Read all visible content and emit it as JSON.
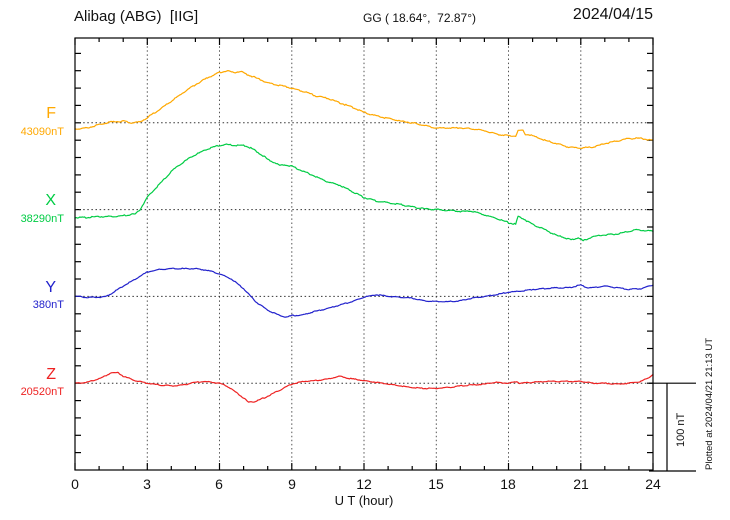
{
  "header": {
    "title": "Alibag (ABG)  [IIG]",
    "coordinates": "GG ( 18.64°,  72.87°)",
    "date": "2024/04/15"
  },
  "x_axis": {
    "tick_labels": [
      "0",
      "3",
      "6",
      "9",
      "12",
      "15",
      "18",
      "21",
      "24"
    ],
    "label": "U T (hour)"
  },
  "scale_bar": {
    "label": "100 nT"
  },
  "side_note": "Plotted at 2024/04/21 21:13 UT",
  "chart_data": {
    "type": "line",
    "title": "Alibag (ABG) magnetogram 2024/04/15",
    "x_unit": "UT hour",
    "x_range": [
      0,
      24
    ],
    "x_gridlines_hours": [
      3,
      6,
      9,
      12,
      15,
      18,
      21
    ],
    "y_scale_note": "scale bar = 100 nT; point values are deviations in nT from each channel baseline",
    "grid": "dotted",
    "series": [
      {
        "name": "F",
        "base_label": "43090nT",
        "baseline_nT": 43090,
        "color": "#FFA800",
        "points": [
          [
            0,
            -7
          ],
          [
            0.5,
            -6
          ],
          [
            1,
            -2
          ],
          [
            1.5,
            1
          ],
          [
            2,
            2
          ],
          [
            2.3,
            0
          ],
          [
            2.7,
            1
          ],
          [
            3,
            6
          ],
          [
            3.5,
            15
          ],
          [
            4,
            25
          ],
          [
            4.5,
            35
          ],
          [
            5,
            44
          ],
          [
            5.5,
            52
          ],
          [
            6,
            58
          ],
          [
            6.3,
            60
          ],
          [
            6.6,
            58
          ],
          [
            6.9,
            59
          ],
          [
            7.2,
            55
          ],
          [
            7.5,
            52
          ],
          [
            8,
            46
          ],
          [
            8.5,
            43
          ],
          [
            9,
            40
          ],
          [
            9.5,
            36
          ],
          [
            10,
            31
          ],
          [
            10.5,
            28
          ],
          [
            11,
            23
          ],
          [
            11.5,
            18
          ],
          [
            12,
            12
          ],
          [
            12.5,
            8
          ],
          [
            13,
            5
          ],
          [
            13.5,
            2
          ],
          [
            14,
            0
          ],
          [
            14.5,
            -3
          ],
          [
            15,
            -6
          ],
          [
            16,
            -6
          ],
          [
            16.5,
            -7
          ],
          [
            17,
            -9
          ],
          [
            17.5,
            -13
          ],
          [
            18,
            -15
          ],
          [
            18.3,
            -15
          ],
          [
            18.4,
            -9
          ],
          [
            18.6,
            -9
          ],
          [
            18.7,
            -13
          ],
          [
            19,
            -15
          ],
          [
            19.5,
            -20
          ],
          [
            20,
            -24
          ],
          [
            20.5,
            -28
          ],
          [
            21,
            -29
          ],
          [
            21.5,
            -28
          ],
          [
            22,
            -24
          ],
          [
            22.5,
            -21
          ],
          [
            23,
            -18
          ],
          [
            23.5,
            -18
          ],
          [
            24,
            -20
          ]
        ]
      },
      {
        "name": "X",
        "base_label": "38290nT",
        "baseline_nT": 38290,
        "color": "#00CC44",
        "points": [
          [
            0,
            -9
          ],
          [
            0.5,
            -9
          ],
          [
            1,
            -8
          ],
          [
            1.5,
            -8
          ],
          [
            2,
            -7
          ],
          [
            2.5,
            -5
          ],
          [
            2.7,
            0
          ],
          [
            3,
            14
          ],
          [
            3.5,
            29
          ],
          [
            4,
            44
          ],
          [
            4.5,
            55
          ],
          [
            5,
            63
          ],
          [
            5.5,
            70
          ],
          [
            6,
            74
          ],
          [
            6.3,
            75
          ],
          [
            6.6,
            74
          ],
          [
            7,
            74
          ],
          [
            7.3,
            71
          ],
          [
            7.6,
            66
          ],
          [
            8,
            58
          ],
          [
            8.3,
            54
          ],
          [
            8.5,
            51
          ],
          [
            8.7,
            52
          ],
          [
            9,
            50
          ],
          [
            9.5,
            44
          ],
          [
            10,
            38
          ],
          [
            10.5,
            32
          ],
          [
            11,
            28
          ],
          [
            11.5,
            21
          ],
          [
            12,
            14
          ],
          [
            12.5,
            10
          ],
          [
            13,
            8
          ],
          [
            13.5,
            6
          ],
          [
            14,
            3
          ],
          [
            14.5,
            1
          ],
          [
            15,
            0
          ],
          [
            15.5,
            -1
          ],
          [
            16,
            -2
          ],
          [
            16.5,
            -2
          ],
          [
            17,
            -6
          ],
          [
            17.5,
            -10
          ],
          [
            18,
            -15
          ],
          [
            18.3,
            -17
          ],
          [
            18.4,
            -8
          ],
          [
            18.6,
            -10
          ],
          [
            18.8,
            -14
          ],
          [
            19,
            -17
          ],
          [
            19.5,
            -23
          ],
          [
            20,
            -30
          ],
          [
            20.3,
            -32
          ],
          [
            20.6,
            -35
          ],
          [
            20.9,
            -32
          ],
          [
            21.1,
            -36
          ],
          [
            21.5,
            -31
          ],
          [
            22,
            -29
          ],
          [
            22.5,
            -28
          ],
          [
            23,
            -25
          ],
          [
            23.3,
            -23
          ],
          [
            23.6,
            -24
          ],
          [
            24,
            -25
          ]
        ]
      },
      {
        "name": "Y",
        "base_label": "380nT",
        "baseline_nT": 380,
        "color": "#2222CC",
        "points": [
          [
            0,
            0
          ],
          [
            0.5,
            -1
          ],
          [
            1,
            -1
          ],
          [
            1.3,
            0
          ],
          [
            1.5,
            3
          ],
          [
            2,
            12
          ],
          [
            2.5,
            20
          ],
          [
            3,
            28
          ],
          [
            3.5,
            31
          ],
          [
            4,
            32
          ],
          [
            4.5,
            32
          ],
          [
            5,
            32
          ],
          [
            5.5,
            30
          ],
          [
            6,
            26
          ],
          [
            6.5,
            20
          ],
          [
            7,
            9
          ],
          [
            7.5,
            -6
          ],
          [
            8,
            -16
          ],
          [
            8.5,
            -22
          ],
          [
            8.8,
            -24
          ],
          [
            9,
            -22
          ],
          [
            9.3,
            -22
          ],
          [
            9.5,
            -21
          ],
          [
            10,
            -17
          ],
          [
            10.5,
            -14
          ],
          [
            11,
            -10
          ],
          [
            11.5,
            -6
          ],
          [
            12,
            -1
          ],
          [
            12.5,
            2
          ],
          [
            13,
            0
          ],
          [
            13.5,
            -1
          ],
          [
            14,
            -2
          ],
          [
            14.5,
            -5
          ],
          [
            15,
            -6
          ],
          [
            15.5,
            -6
          ],
          [
            16,
            -5
          ],
          [
            16.5,
            -2
          ],
          [
            17,
            0
          ],
          [
            17.5,
            2
          ],
          [
            18,
            5
          ],
          [
            18.5,
            6
          ],
          [
            19,
            8
          ],
          [
            19.5,
            9
          ],
          [
            20,
            10
          ],
          [
            20.5,
            10
          ],
          [
            21,
            13
          ],
          [
            21.3,
            10
          ],
          [
            21.5,
            10
          ],
          [
            22,
            12
          ],
          [
            22.5,
            10
          ],
          [
            23,
            8
          ],
          [
            23.5,
            9
          ],
          [
            24,
            13
          ]
        ]
      },
      {
        "name": "Z",
        "base_label": "20520nT",
        "baseline_nT": 20520,
        "color": "#EE2222",
        "points": [
          [
            0,
            0
          ],
          [
            0.5,
            1
          ],
          [
            1,
            5
          ],
          [
            1.3,
            9
          ],
          [
            1.5,
            12
          ],
          [
            1.8,
            12
          ],
          [
            2,
            8
          ],
          [
            2.5,
            3
          ],
          [
            3,
            0
          ],
          [
            3.5,
            -2
          ],
          [
            4,
            -3
          ],
          [
            4.5,
            -2
          ],
          [
            5,
            1
          ],
          [
            5.3,
            2
          ],
          [
            5.7,
            1
          ],
          [
            6,
            0
          ],
          [
            6.3,
            -3
          ],
          [
            6.6,
            -9
          ],
          [
            7,
            -17
          ],
          [
            7.2,
            -22
          ],
          [
            7.5,
            -21
          ],
          [
            8,
            -15
          ],
          [
            8.5,
            -8
          ],
          [
            9,
            -1
          ],
          [
            9.5,
            2
          ],
          [
            10,
            3
          ],
          [
            10.5,
            5
          ],
          [
            10.8,
            7
          ],
          [
            11,
            8
          ],
          [
            11.3,
            6
          ],
          [
            11.5,
            5
          ],
          [
            12,
            3
          ],
          [
            12.5,
            1
          ],
          [
            13,
            -1
          ],
          [
            13.5,
            -3
          ],
          [
            14,
            -5
          ],
          [
            14.5,
            -6
          ],
          [
            15,
            -6
          ],
          [
            15.5,
            -5
          ],
          [
            16,
            -3
          ],
          [
            16.5,
            -2
          ],
          [
            17,
            -1
          ],
          [
            17.5,
            1
          ],
          [
            18,
            0
          ],
          [
            18.35,
            2
          ],
          [
            18.45,
            0
          ],
          [
            19,
            1
          ],
          [
            19.5,
            2
          ],
          [
            20,
            2
          ],
          [
            21,
            2
          ],
          [
            21.5,
            0
          ],
          [
            22,
            0
          ],
          [
            22.5,
            -1
          ],
          [
            23,
            0
          ],
          [
            23.5,
            2
          ],
          [
            23.8,
            6
          ],
          [
            24,
            10
          ]
        ]
      }
    ]
  }
}
